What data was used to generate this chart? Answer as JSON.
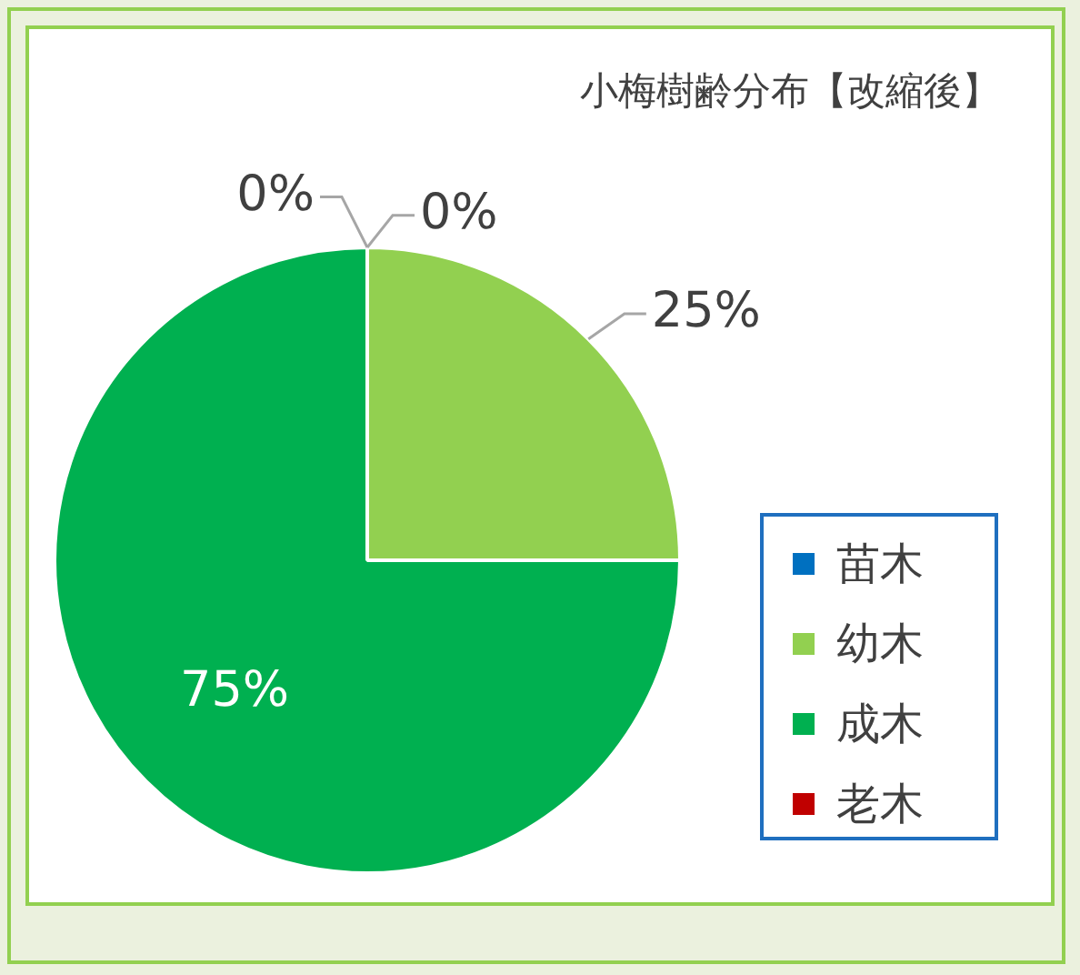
{
  "chart_data": {
    "type": "pie",
    "title": "小梅樹齢分布【改縮後】",
    "categories": [
      "苗木",
      "幼木",
      "成木",
      "老木"
    ],
    "values": [
      0,
      25,
      75,
      0
    ],
    "value_labels": [
      "0%",
      "25%",
      "75%",
      "0%"
    ],
    "colors": [
      "#0070c0",
      "#92d050",
      "#00b050",
      "#c00000"
    ],
    "legend": "right"
  }
}
